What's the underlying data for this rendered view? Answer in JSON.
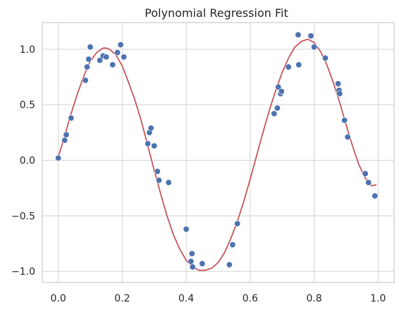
{
  "chart_data": {
    "type": "scatter",
    "title": "Polynomial Regression Fit",
    "xlabel": "",
    "ylabel": "",
    "xlim": [
      -0.05,
      1.05
    ],
    "ylim": [
      -1.1,
      1.24
    ],
    "grid": true,
    "x_ticks": [
      0.0,
      0.2,
      0.4,
      0.6,
      0.8,
      1.0
    ],
    "x_tick_labels": [
      "0.0",
      "0.2",
      "0.4",
      "0.6",
      "0.8",
      "1.0"
    ],
    "y_ticks": [
      -1.0,
      -0.5,
      0.0,
      0.5,
      1.0
    ],
    "y_tick_labels": [
      "−1.0",
      "−0.5",
      "0.0",
      "0.5",
      "1.0"
    ],
    "colors": {
      "points": "#4c72b0",
      "fit_line": "#c44e52",
      "grid": "#d3d3d3"
    },
    "series": [
      {
        "kind": "scatter",
        "points": [
          [
            0.0,
            0.02
          ],
          [
            0.02,
            0.18
          ],
          [
            0.025,
            0.23
          ],
          [
            0.04,
            0.38
          ],
          [
            0.085,
            0.72
          ],
          [
            0.09,
            0.84
          ],
          [
            0.095,
            0.91
          ],
          [
            0.1,
            1.02
          ],
          [
            0.13,
            0.9
          ],
          [
            0.14,
            0.94
          ],
          [
            0.15,
            0.93
          ],
          [
            0.17,
            0.86
          ],
          [
            0.185,
            0.97
          ],
          [
            0.195,
            1.04
          ],
          [
            0.205,
            0.93
          ],
          [
            0.28,
            0.15
          ],
          [
            0.285,
            0.25
          ],
          [
            0.29,
            0.29
          ],
          [
            0.3,
            0.13
          ],
          [
            0.31,
            -0.1
          ],
          [
            0.315,
            -0.18
          ],
          [
            0.345,
            -0.2
          ],
          [
            0.4,
            -0.62
          ],
          [
            0.415,
            -0.91
          ],
          [
            0.418,
            -0.84
          ],
          [
            0.42,
            -0.96
          ],
          [
            0.45,
            -0.93
          ],
          [
            0.535,
            -0.94
          ],
          [
            0.545,
            -0.76
          ],
          [
            0.56,
            -0.57
          ],
          [
            0.675,
            0.42
          ],
          [
            0.685,
            0.47
          ],
          [
            0.688,
            0.66
          ],
          [
            0.695,
            0.6
          ],
          [
            0.698,
            0.62
          ],
          [
            0.72,
            0.84
          ],
          [
            0.75,
            1.13
          ],
          [
            0.752,
            0.86
          ],
          [
            0.79,
            1.12
          ],
          [
            0.8,
            1.02
          ],
          [
            0.835,
            0.92
          ],
          [
            0.875,
            0.69
          ],
          [
            0.878,
            0.63
          ],
          [
            0.88,
            0.6
          ],
          [
            0.895,
            0.36
          ],
          [
            0.905,
            0.21
          ],
          [
            0.96,
            -0.12
          ],
          [
            0.97,
            -0.2
          ],
          [
            0.99,
            -0.32
          ]
        ]
      },
      {
        "kind": "line",
        "points": [
          [
            0.0,
            0.03
          ],
          [
            0.02,
            0.22
          ],
          [
            0.04,
            0.42
          ],
          [
            0.06,
            0.6
          ],
          [
            0.08,
            0.76
          ],
          [
            0.1,
            0.89
          ],
          [
            0.12,
            0.97
          ],
          [
            0.14,
            1.01
          ],
          [
            0.15,
            1.01
          ],
          [
            0.16,
            1.0
          ],
          [
            0.18,
            0.95
          ],
          [
            0.2,
            0.85
          ],
          [
            0.22,
            0.7
          ],
          [
            0.24,
            0.54
          ],
          [
            0.26,
            0.35
          ],
          [
            0.28,
            0.13
          ],
          [
            0.3,
            -0.09
          ],
          [
            0.32,
            -0.3
          ],
          [
            0.34,
            -0.5
          ],
          [
            0.36,
            -0.67
          ],
          [
            0.38,
            -0.8
          ],
          [
            0.4,
            -0.9
          ],
          [
            0.42,
            -0.96
          ],
          [
            0.44,
            -0.99
          ],
          [
            0.46,
            -0.99
          ],
          [
            0.48,
            -0.97
          ],
          [
            0.5,
            -0.92
          ],
          [
            0.52,
            -0.83
          ],
          [
            0.54,
            -0.7
          ],
          [
            0.56,
            -0.55
          ],
          [
            0.58,
            -0.37
          ],
          [
            0.6,
            -0.17
          ],
          [
            0.62,
            0.04
          ],
          [
            0.64,
            0.25
          ],
          [
            0.66,
            0.45
          ],
          [
            0.68,
            0.63
          ],
          [
            0.7,
            0.79
          ],
          [
            0.72,
            0.92
          ],
          [
            0.74,
            1.02
          ],
          [
            0.76,
            1.07
          ],
          [
            0.78,
            1.09
          ],
          [
            0.8,
            1.06
          ],
          [
            0.82,
            0.98
          ],
          [
            0.84,
            0.86
          ],
          [
            0.86,
            0.7
          ],
          [
            0.88,
            0.52
          ],
          [
            0.9,
            0.32
          ],
          [
            0.92,
            0.13
          ],
          [
            0.94,
            -0.04
          ],
          [
            0.96,
            -0.16
          ],
          [
            0.98,
            -0.23
          ],
          [
            0.995,
            -0.22
          ]
        ]
      }
    ]
  }
}
